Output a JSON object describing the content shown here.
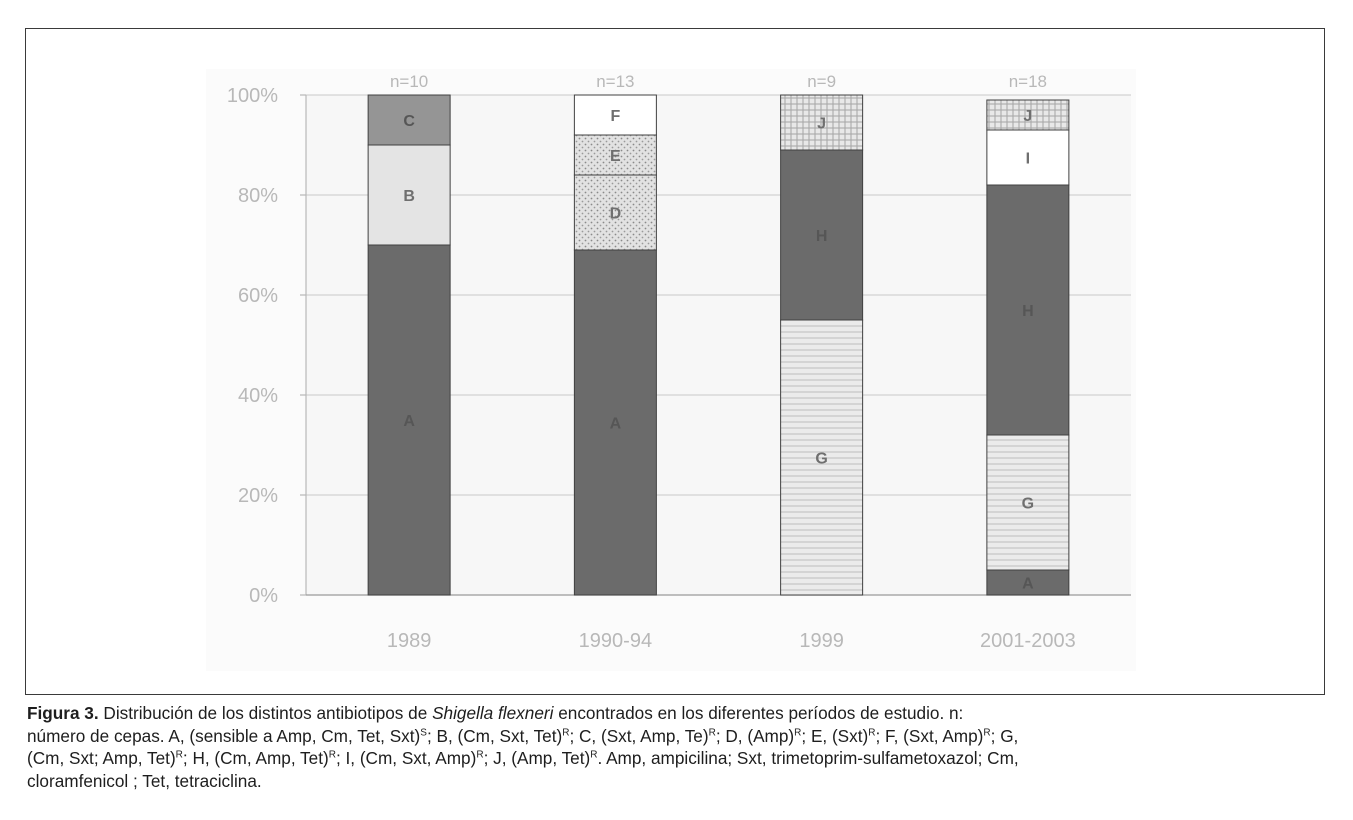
{
  "chart_data": {
    "type": "bar",
    "stacked": true,
    "categories": [
      "1989",
      "1990-94",
      "1999",
      "2001-2003"
    ],
    "bar_top_labels": [
      "n=10",
      "n=13",
      "n=9",
      "n=18"
    ],
    "yticks": [
      "0%",
      "20%",
      "40%",
      "60%",
      "80%",
      "100%"
    ],
    "ylim": [
      0,
      100
    ],
    "grid": true,
    "legend": "none",
    "segments": [
      [
        {
          "label": "A",
          "value": 70,
          "pattern": "dark"
        },
        {
          "label": "B",
          "value": 20,
          "pattern": "light"
        },
        {
          "label": "C",
          "value": 10,
          "pattern": "medium"
        }
      ],
      [
        {
          "label": "A",
          "value": 69,
          "pattern": "dark"
        },
        {
          "label": "D",
          "value": 15,
          "pattern": "dots"
        },
        {
          "label": "E",
          "value": 8,
          "pattern": "dots"
        },
        {
          "label": "F",
          "value": 8,
          "pattern": "white"
        }
      ],
      [
        {
          "label": "G",
          "value": 55,
          "pattern": "hlines"
        },
        {
          "label": "H",
          "value": 34,
          "pattern": "dark"
        },
        {
          "label": "J",
          "value": 11,
          "pattern": "grid"
        }
      ],
      [
        {
          "label": "A",
          "value": 5,
          "pattern": "dark"
        },
        {
          "label": "G",
          "value": 27,
          "pattern": "hlines"
        },
        {
          "label": "H",
          "value": 50,
          "pattern": "dark"
        },
        {
          "label": "I",
          "value": 11,
          "pattern": "white"
        },
        {
          "label": "J",
          "value": 6,
          "pattern": "grid"
        }
      ]
    ],
    "colors": {
      "dark": "#6b6b6b",
      "medium": "#959595",
      "light": "#e4e4e4",
      "white": "#ffffff",
      "plot_bg": "#f7f7f7",
      "grid": "#c9c9c9",
      "axis_text": "#b8b8b8",
      "outline": "#404040"
    }
  },
  "caption": {
    "label": "Figura 3.",
    "line1_a": " Distribución de los distintos antibiotipos de ",
    "line1_species": "Shigella flexneri",
    "line1_b": " encontrados en los diferentes períodos de estudio. n:",
    "line2_a": "número de cepas.  A, (sensible a Amp, Cm, Tet, Sxt)",
    "line2_sup1": "S",
    "line2_b": "; B, (Cm, Sxt, Tet)",
    "line2_sup2": "R",
    "line2_c": "; C, (Sxt, Amp, Te)",
    "line2_sup3": "R",
    "line2_d": "; D, (Amp)",
    "line2_sup4": "R",
    "line2_e": "; E, (Sxt)",
    "line2_sup5": "R",
    "line2_f": "; F, (Sxt, Amp)",
    "line2_sup6": "R",
    "line2_g": "; G,",
    "line3_a": "(Cm, Sxt; Amp, Tet)",
    "line3_sup1": "R",
    "line3_b": "; H, (Cm, Amp, Tet)",
    "line3_sup2": "R",
    "line3_c": "; I, (Cm, Sxt, Amp)",
    "line3_sup3": "R",
    "line3_d": "; J, (Amp, Tet)",
    "line3_sup4": "R",
    "line3_e": ". Amp, ampicilina; Sxt, trimetoprim-sulfametoxazol; Cm,",
    "line4": "cloramfenicol ; Tet, tetraciclina."
  }
}
